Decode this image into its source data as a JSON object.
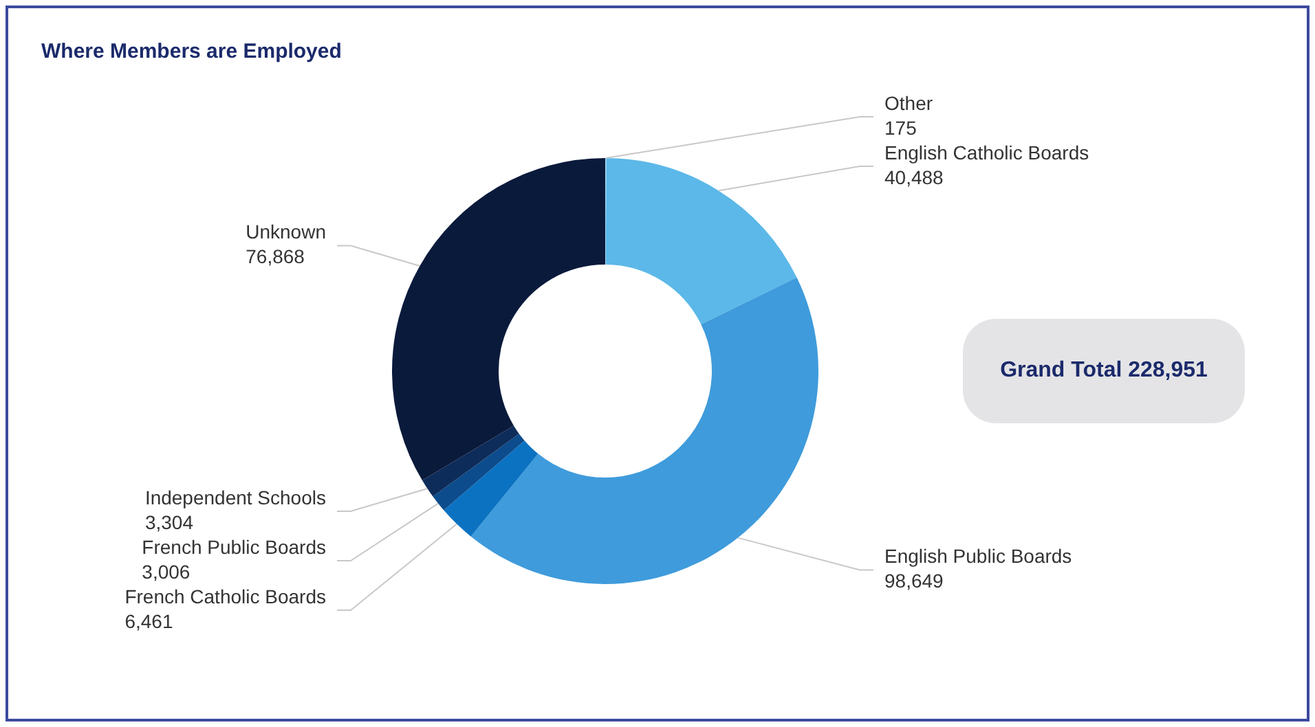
{
  "chart_data": {
    "type": "donut",
    "title": "Where Members are Employed",
    "categories": [
      "Other",
      "English Catholic Boards",
      "English Public Boards",
      "French Catholic Boards",
      "French Public Boards",
      "Independent Schools",
      "Unknown"
    ],
    "values": [
      175,
      40488,
      98649,
      6461,
      3006,
      3304,
      76868
    ],
    "value_labels": [
      "175",
      "40,488",
      "98,649",
      "6,461",
      "3,006",
      "3,304",
      "76,868"
    ],
    "colors": [
      "#9fd6f2",
      "#5cb8e8",
      "#3f9bdb",
      "#0b72c2",
      "#0d4c8c",
      "#0e2c5a",
      "#0a1a3b"
    ],
    "annotations": [
      "Grand Total 228,951"
    ],
    "legend": false
  }
}
